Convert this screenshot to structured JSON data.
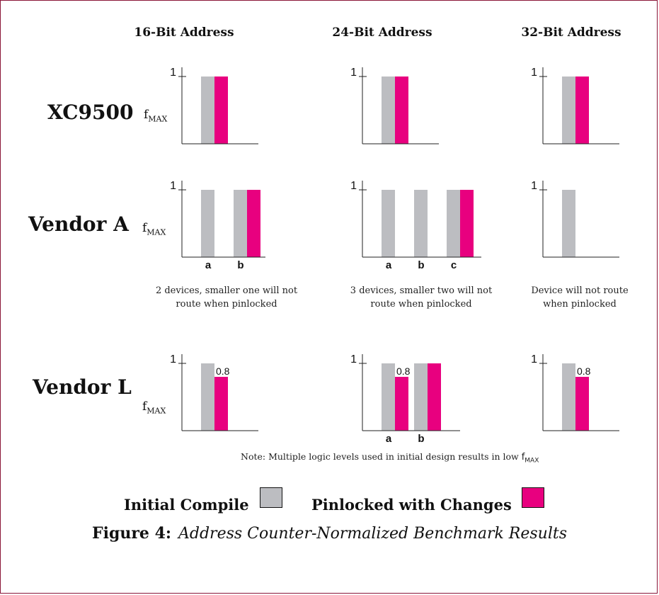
{
  "column_headers": [
    "16-Bit Address",
    "24-Bit Address",
    "32-Bit Address"
  ],
  "row_headers": [
    "XC9500",
    "Vendor A",
    "Vendor L"
  ],
  "ylabel": {
    "base": "f",
    "sub": "MAX"
  },
  "captions": {
    "vendor_a_16": "2 devices, smaller one will not route when pinlocked",
    "vendor_a_24": "3 devices, smaller two will not route when pinlocked",
    "vendor_a_32": "Device will not route when pinlocked"
  },
  "note": {
    "text": "Note:  Multiple logic levels used in initial design results in low ",
    "f": "f",
    "sub": "MAX"
  },
  "legend": {
    "initial": "Initial Compile",
    "pinlocked": "Pinlocked with Changes"
  },
  "colors": {
    "initial": "#bcbdc1",
    "pinlocked": "#e8007f",
    "frame": "#8a1538"
  },
  "figure": {
    "label": "Figure 4:",
    "title": "Address Counter-Normalized Benchmark Results"
  },
  "chart_data": [
    {
      "type": "bar",
      "row": "XC9500",
      "column": "16-Bit Address",
      "ytick": "1",
      "categories": [
        ""
      ],
      "series": [
        {
          "name": "Initial Compile",
          "values": [
            1
          ]
        },
        {
          "name": "Pinlocked with Changes",
          "values": [
            1
          ]
        }
      ]
    },
    {
      "type": "bar",
      "row": "XC9500",
      "column": "24-Bit Address",
      "ytick": "1",
      "categories": [
        ""
      ],
      "series": [
        {
          "name": "Initial Compile",
          "values": [
            1
          ]
        },
        {
          "name": "Pinlocked with Changes",
          "values": [
            1
          ]
        }
      ]
    },
    {
      "type": "bar",
      "row": "XC9500",
      "column": "32-Bit Address",
      "ytick": "1",
      "categories": [
        ""
      ],
      "series": [
        {
          "name": "Initial Compile",
          "values": [
            1
          ]
        },
        {
          "name": "Pinlocked with Changes",
          "values": [
            1
          ]
        }
      ]
    },
    {
      "type": "bar",
      "row": "Vendor A",
      "column": "16-Bit Address",
      "ytick": "1",
      "categories": [
        "a",
        "b"
      ],
      "series": [
        {
          "name": "Initial Compile",
          "values": [
            1,
            1
          ]
        },
        {
          "name": "Pinlocked with Changes",
          "values": [
            null,
            1
          ]
        }
      ]
    },
    {
      "type": "bar",
      "row": "Vendor A",
      "column": "24-Bit Address",
      "ytick": "1",
      "categories": [
        "a",
        "b",
        "c"
      ],
      "series": [
        {
          "name": "Initial Compile",
          "values": [
            1,
            1,
            1
          ]
        },
        {
          "name": "Pinlocked with Changes",
          "values": [
            null,
            null,
            1
          ]
        }
      ]
    },
    {
      "type": "bar",
      "row": "Vendor A",
      "column": "32-Bit Address",
      "ytick": "1",
      "categories": [
        ""
      ],
      "series": [
        {
          "name": "Initial Compile",
          "values": [
            1
          ]
        },
        {
          "name": "Pinlocked with Changes",
          "values": [
            null
          ]
        }
      ]
    },
    {
      "type": "bar",
      "row": "Vendor L",
      "column": "16-Bit Address",
      "ytick": "1",
      "categories": [
        ""
      ],
      "series": [
        {
          "name": "Initial Compile",
          "values": [
            1
          ]
        },
        {
          "name": "Pinlocked with Changes",
          "values": [
            0.8
          ],
          "labels": [
            "0.8"
          ]
        }
      ]
    },
    {
      "type": "bar",
      "row": "Vendor L",
      "column": "24-Bit Address",
      "ytick": "1",
      "categories": [
        "a",
        "b"
      ],
      "series": [
        {
          "name": "Initial Compile",
          "values": [
            1,
            1
          ]
        },
        {
          "name": "Pinlocked with Changes",
          "values": [
            0.8,
            1
          ],
          "labels": [
            "0.8",
            ""
          ]
        }
      ]
    },
    {
      "type": "bar",
      "row": "Vendor L",
      "column": "32-Bit Address",
      "ytick": "1",
      "categories": [
        ""
      ],
      "series": [
        {
          "name": "Initial Compile",
          "values": [
            1
          ]
        },
        {
          "name": "Pinlocked with Changes",
          "values": [
            0.8
          ],
          "labels": [
            "0.8"
          ]
        }
      ]
    }
  ]
}
